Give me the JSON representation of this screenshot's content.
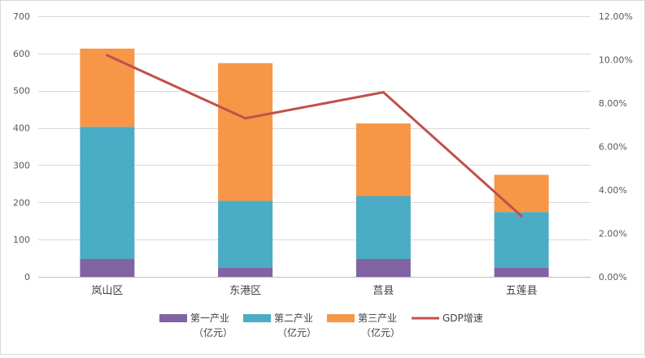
{
  "chart_data": {
    "type": "bar",
    "stacked": true,
    "categories": [
      "岚山区",
      "东港区",
      "莒县",
      "五莲县"
    ],
    "series": [
      {
        "name": "第一产业",
        "name_line2": "（亿元）",
        "color": "#8064a2",
        "axis": "left",
        "values": [
          48,
          24,
          48,
          24
        ]
      },
      {
        "name": "第二产业",
        "name_line2": "（亿元）",
        "color": "#4bacc6",
        "axis": "left",
        "values": [
          355,
          180,
          169,
          150
        ]
      },
      {
        "name": "第三产业",
        "name_line2": "（亿元）",
        "color": "#f79646",
        "axis": "left",
        "values": [
          210,
          370,
          195,
          100
        ]
      }
    ],
    "line_series": [
      {
        "name": "GDP增速",
        "color": "#c0504d",
        "axis": "right",
        "values": [
          10.2,
          7.3,
          8.5,
          2.8
        ]
      }
    ],
    "y_left": {
      "min": 0,
      "max": 700,
      "step": 100,
      "ticks": [
        "0",
        "100",
        "200",
        "300",
        "400",
        "500",
        "600",
        "700"
      ]
    },
    "y_right": {
      "min": 0,
      "max": 12,
      "step": 2,
      "ticks": [
        "0.00%",
        "2.00%",
        "4.00%",
        "6.00%",
        "8.00%",
        "10.00%",
        "12.00%"
      ]
    },
    "grid": true,
    "legend_position": "bottom"
  }
}
